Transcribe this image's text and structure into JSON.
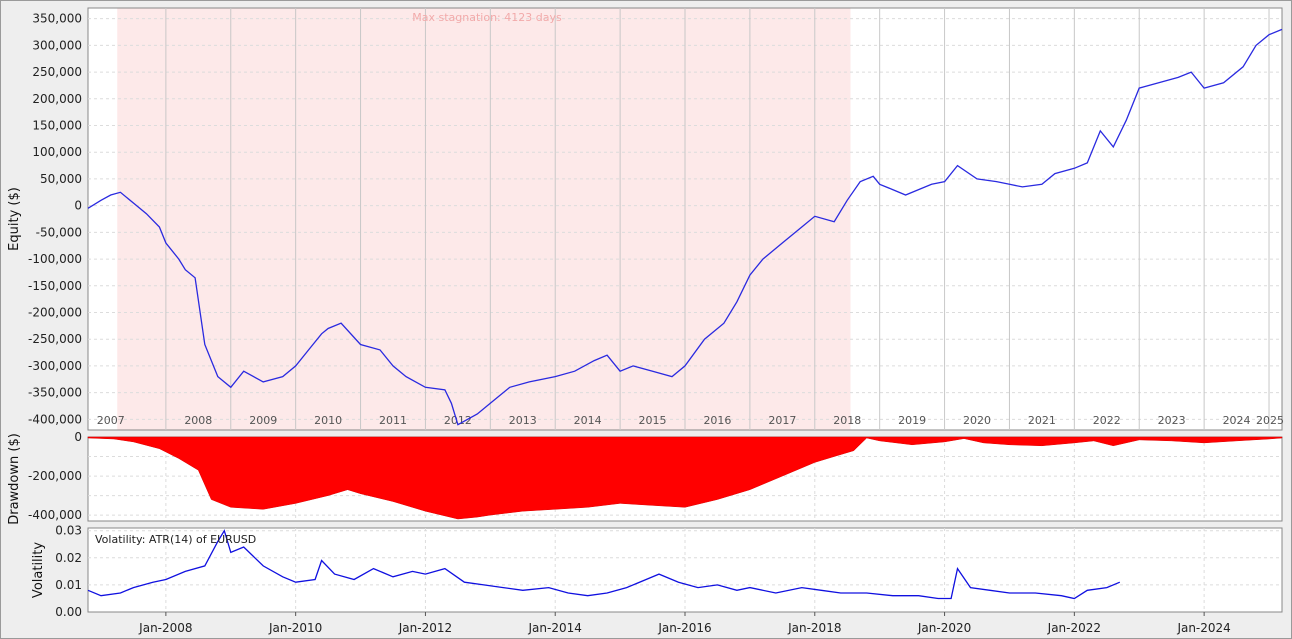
{
  "chart_data": [
    {
      "type": "line",
      "ylabel": "Equity ($)",
      "ylim": [
        -420000,
        370000
      ],
      "yticks": [
        350000,
        300000,
        250000,
        200000,
        150000,
        100000,
        50000,
        0,
        -50000,
        -100000,
        -150000,
        -200000,
        -250000,
        -300000,
        -350000,
        -400000
      ],
      "ytick_labels": [
        "350,000",
        "300,000",
        "250,000",
        "200,000",
        "150,000",
        "100,000",
        "50,000",
        "0",
        "-50,000",
        "-100,000",
        "-150,000",
        "-200,000",
        "-250,000",
        "-300,000",
        "-350,000",
        "-400,000"
      ],
      "xlim": [
        2006.8,
        2025.2
      ],
      "year_labels": [
        "2007",
        "2008",
        "2009",
        "2010",
        "2011",
        "2012",
        "2013",
        "2014",
        "2015",
        "2016",
        "2017",
        "2018",
        "2019",
        "2020",
        "2021",
        "2022",
        "2023",
        "2024",
        "2025"
      ],
      "annotation": "Max stagnation: 4123 days",
      "stagnation_period": [
        2007.25,
        2018.55
      ],
      "line_color": "#2a2ae0",
      "shade_color": "#fde9e9",
      "grid": true,
      "series": [
        {
          "x": [
            2006.8,
            2007.0,
            2007.15,
            2007.3,
            2007.5,
            2007.7,
            2007.9,
            2008.0,
            2008.2,
            2008.3,
            2008.45,
            2008.6,
            2008.8,
            2009.0,
            2009.2,
            2009.5,
            2009.8,
            2010.0,
            2010.2,
            2010.4,
            2010.5,
            2010.7,
            2011.0,
            2011.3,
            2011.5,
            2011.7,
            2012.0,
            2012.3,
            2012.4,
            2012.5,
            2012.8,
            2013.0,
            2013.3,
            2013.6,
            2014.0,
            2014.3,
            2014.6,
            2014.8,
            2015.0,
            2015.2,
            2015.5,
            2015.8,
            2016.0,
            2016.3,
            2016.6,
            2016.8,
            2017.0,
            2017.2,
            2017.5,
            2017.8,
            2018.0,
            2018.3,
            2018.5,
            2018.7,
            2018.9,
            2019.0,
            2019.2,
            2019.4,
            2019.6,
            2019.8,
            2020.0,
            2020.2,
            2020.5,
            2020.8,
            2021.0,
            2021.2,
            2021.5,
            2021.7,
            2022.0,
            2022.2,
            2022.4,
            2022.6,
            2022.8,
            2023.0,
            2023.3,
            2023.6,
            2023.8,
            2024.0,
            2024.3,
            2024.6,
            2024.8,
            2025.0,
            2025.2
          ],
          "y": [
            -5000,
            10000,
            20000,
            25000,
            5000,
            -15000,
            -40000,
            -70000,
            -100000,
            -120000,
            -135000,
            -260000,
            -320000,
            -340000,
            -310000,
            -330000,
            -320000,
            -300000,
            -270000,
            -240000,
            -230000,
            -220000,
            -260000,
            -270000,
            -300000,
            -320000,
            -340000,
            -345000,
            -370000,
            -410000,
            -390000,
            -370000,
            -340000,
            -330000,
            -320000,
            -310000,
            -290000,
            -280000,
            -310000,
            -300000,
            -310000,
            -320000,
            -300000,
            -250000,
            -220000,
            -180000,
            -130000,
            -100000,
            -70000,
            -40000,
            -20000,
            -30000,
            10000,
            45000,
            55000,
            40000,
            30000,
            20000,
            30000,
            40000,
            45000,
            75000,
            50000,
            45000,
            40000,
            35000,
            40000,
            60000,
            70000,
            80000,
            140000,
            110000,
            160000,
            220000,
            230000,
            240000,
            250000,
            220000,
            230000,
            260000,
            300000,
            320000,
            330000
          ]
        }
      ]
    },
    {
      "type": "area",
      "ylabel": "Drawdown ($)",
      "ylim": [
        -430000,
        0
      ],
      "ytick_labels": [
        "0",
        "-200,000",
        "-400,000"
      ],
      "bar_color": "#ff0000",
      "grid": true,
      "series": [
        {
          "x": [
            2006.8,
            2007.2,
            2007.5,
            2007.9,
            2008.2,
            2008.5,
            2008.7,
            2009.0,
            2009.5,
            2010.0,
            2010.5,
            2010.8,
            2011.0,
            2011.5,
            2012.0,
            2012.5,
            2012.8,
            2013.0,
            2013.5,
            2014.0,
            2014.5,
            2015.0,
            2015.5,
            2016.0,
            2016.5,
            2017.0,
            2017.5,
            2018.0,
            2018.3,
            2018.6,
            2018.8,
            2019.0,
            2019.5,
            2020.0,
            2020.3,
            2020.6,
            2021.0,
            2021.5,
            2022.0,
            2022.3,
            2022.6,
            2023.0,
            2023.5,
            2024.0,
            2024.5,
            2025.0,
            2025.2
          ],
          "y": [
            -5000,
            -10000,
            -25000,
            -60000,
            -110000,
            -170000,
            -320000,
            -360000,
            -370000,
            -340000,
            -300000,
            -270000,
            -290000,
            -330000,
            -380000,
            -420000,
            -410000,
            -400000,
            -380000,
            -370000,
            -360000,
            -340000,
            -350000,
            -360000,
            -320000,
            -270000,
            -200000,
            -130000,
            -100000,
            -70000,
            -5000,
            -20000,
            -40000,
            -25000,
            -8000,
            -30000,
            -40000,
            -45000,
            -30000,
            -20000,
            -45000,
            -15000,
            -20000,
            -30000,
            -20000,
            -10000,
            -5000
          ]
        }
      ]
    },
    {
      "type": "line",
      "ylabel": "Volatility",
      "ylim": [
        0.0,
        0.031
      ],
      "ytick_labels": [
        "0.03",
        "0.02",
        "0.01",
        "0.00"
      ],
      "legend_text": "Volatility: ATR(14) of EURUSD",
      "line_color": "#1010e0",
      "xtick_labels": [
        "Jan-2008",
        "Jan-2010",
        "Jan-2012",
        "Jan-2014",
        "Jan-2016",
        "Jan-2018",
        "Jan-2020",
        "Jan-2022",
        "Jan-2024"
      ],
      "grid": true,
      "series": [
        {
          "x": [
            2006.8,
            2007.0,
            2007.3,
            2007.5,
            2007.8,
            2008.0,
            2008.3,
            2008.6,
            2008.8,
            2008.9,
            2009.0,
            2009.2,
            2009.5,
            2009.8,
            2010.0,
            2010.3,
            2010.4,
            2010.6,
            2010.9,
            2011.2,
            2011.5,
            2011.8,
            2012.0,
            2012.3,
            2012.6,
            2012.9,
            2013.2,
            2013.5,
            2013.9,
            2014.2,
            2014.5,
            2014.8,
            2015.1,
            2015.4,
            2015.6,
            2015.9,
            2016.2,
            2016.5,
            2016.8,
            2017.0,
            2017.4,
            2017.8,
            2018.1,
            2018.4,
            2018.8,
            2019.2,
            2019.6,
            2019.9,
            2020.1,
            2020.2,
            2020.4,
            2020.7,
            2021.0,
            2021.4,
            2021.8,
            2022.0,
            2022.2,
            2022.5,
            2022.7
          ],
          "y": [
            0.008,
            0.006,
            0.007,
            0.009,
            0.011,
            0.012,
            0.015,
            0.017,
            0.026,
            0.03,
            0.022,
            0.024,
            0.017,
            0.013,
            0.011,
            0.012,
            0.019,
            0.014,
            0.012,
            0.016,
            0.013,
            0.015,
            0.014,
            0.016,
            0.011,
            0.01,
            0.009,
            0.008,
            0.009,
            0.007,
            0.006,
            0.007,
            0.009,
            0.012,
            0.014,
            0.011,
            0.009,
            0.01,
            0.008,
            0.009,
            0.007,
            0.009,
            0.008,
            0.007,
            0.007,
            0.006,
            0.006,
            0.005,
            0.005,
            0.016,
            0.009,
            0.008,
            0.007,
            0.007,
            0.006,
            0.005,
            0.008,
            0.009,
            0.011
          ]
        }
      ]
    }
  ]
}
